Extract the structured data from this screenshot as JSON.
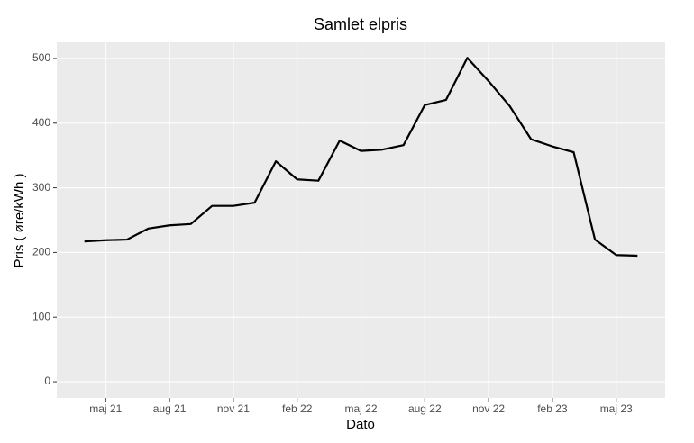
{
  "chart_data": {
    "type": "line",
    "title": "Samlet elpris",
    "xlabel": "Dato",
    "ylabel": "Pris ( øre/kWh )",
    "x": [
      "2021-04",
      "2021-05",
      "2021-06",
      "2021-07",
      "2021-08",
      "2021-09",
      "2021-10",
      "2021-11",
      "2021-12",
      "2022-01",
      "2022-02",
      "2022-03",
      "2022-04",
      "2022-05",
      "2022-06",
      "2022-07",
      "2022-08",
      "2022-09",
      "2022-10",
      "2022-11",
      "2022-12",
      "2023-01",
      "2023-02",
      "2023-03",
      "2023-04",
      "2023-05",
      "2023-06"
    ],
    "series": [
      {
        "color": "#000000",
        "values": [
          217,
          219,
          220,
          237,
          242,
          244,
          272,
          272,
          277,
          341,
          313,
          311,
          373,
          357,
          359,
          366,
          428,
          436,
          501,
          465,
          426,
          375,
          364,
          355,
          220,
          196,
          195
        ]
      }
    ],
    "xticks": [
      {
        "value": "2021-05",
        "label": "maj 21"
      },
      {
        "value": "2021-08",
        "label": "aug 21"
      },
      {
        "value": "2021-11",
        "label": "nov 21"
      },
      {
        "value": "2022-02",
        "label": "feb 22"
      },
      {
        "value": "2022-05",
        "label": "maj 22"
      },
      {
        "value": "2022-08",
        "label": "aug 22"
      },
      {
        "value": "2022-11",
        "label": "nov 22"
      },
      {
        "value": "2023-02",
        "label": "feb 23"
      },
      {
        "value": "2023-05",
        "label": "maj 23"
      }
    ],
    "ylim": [
      -25,
      525
    ],
    "yticks": [
      0,
      100,
      200,
      300,
      400,
      500
    ],
    "grid": true
  }
}
